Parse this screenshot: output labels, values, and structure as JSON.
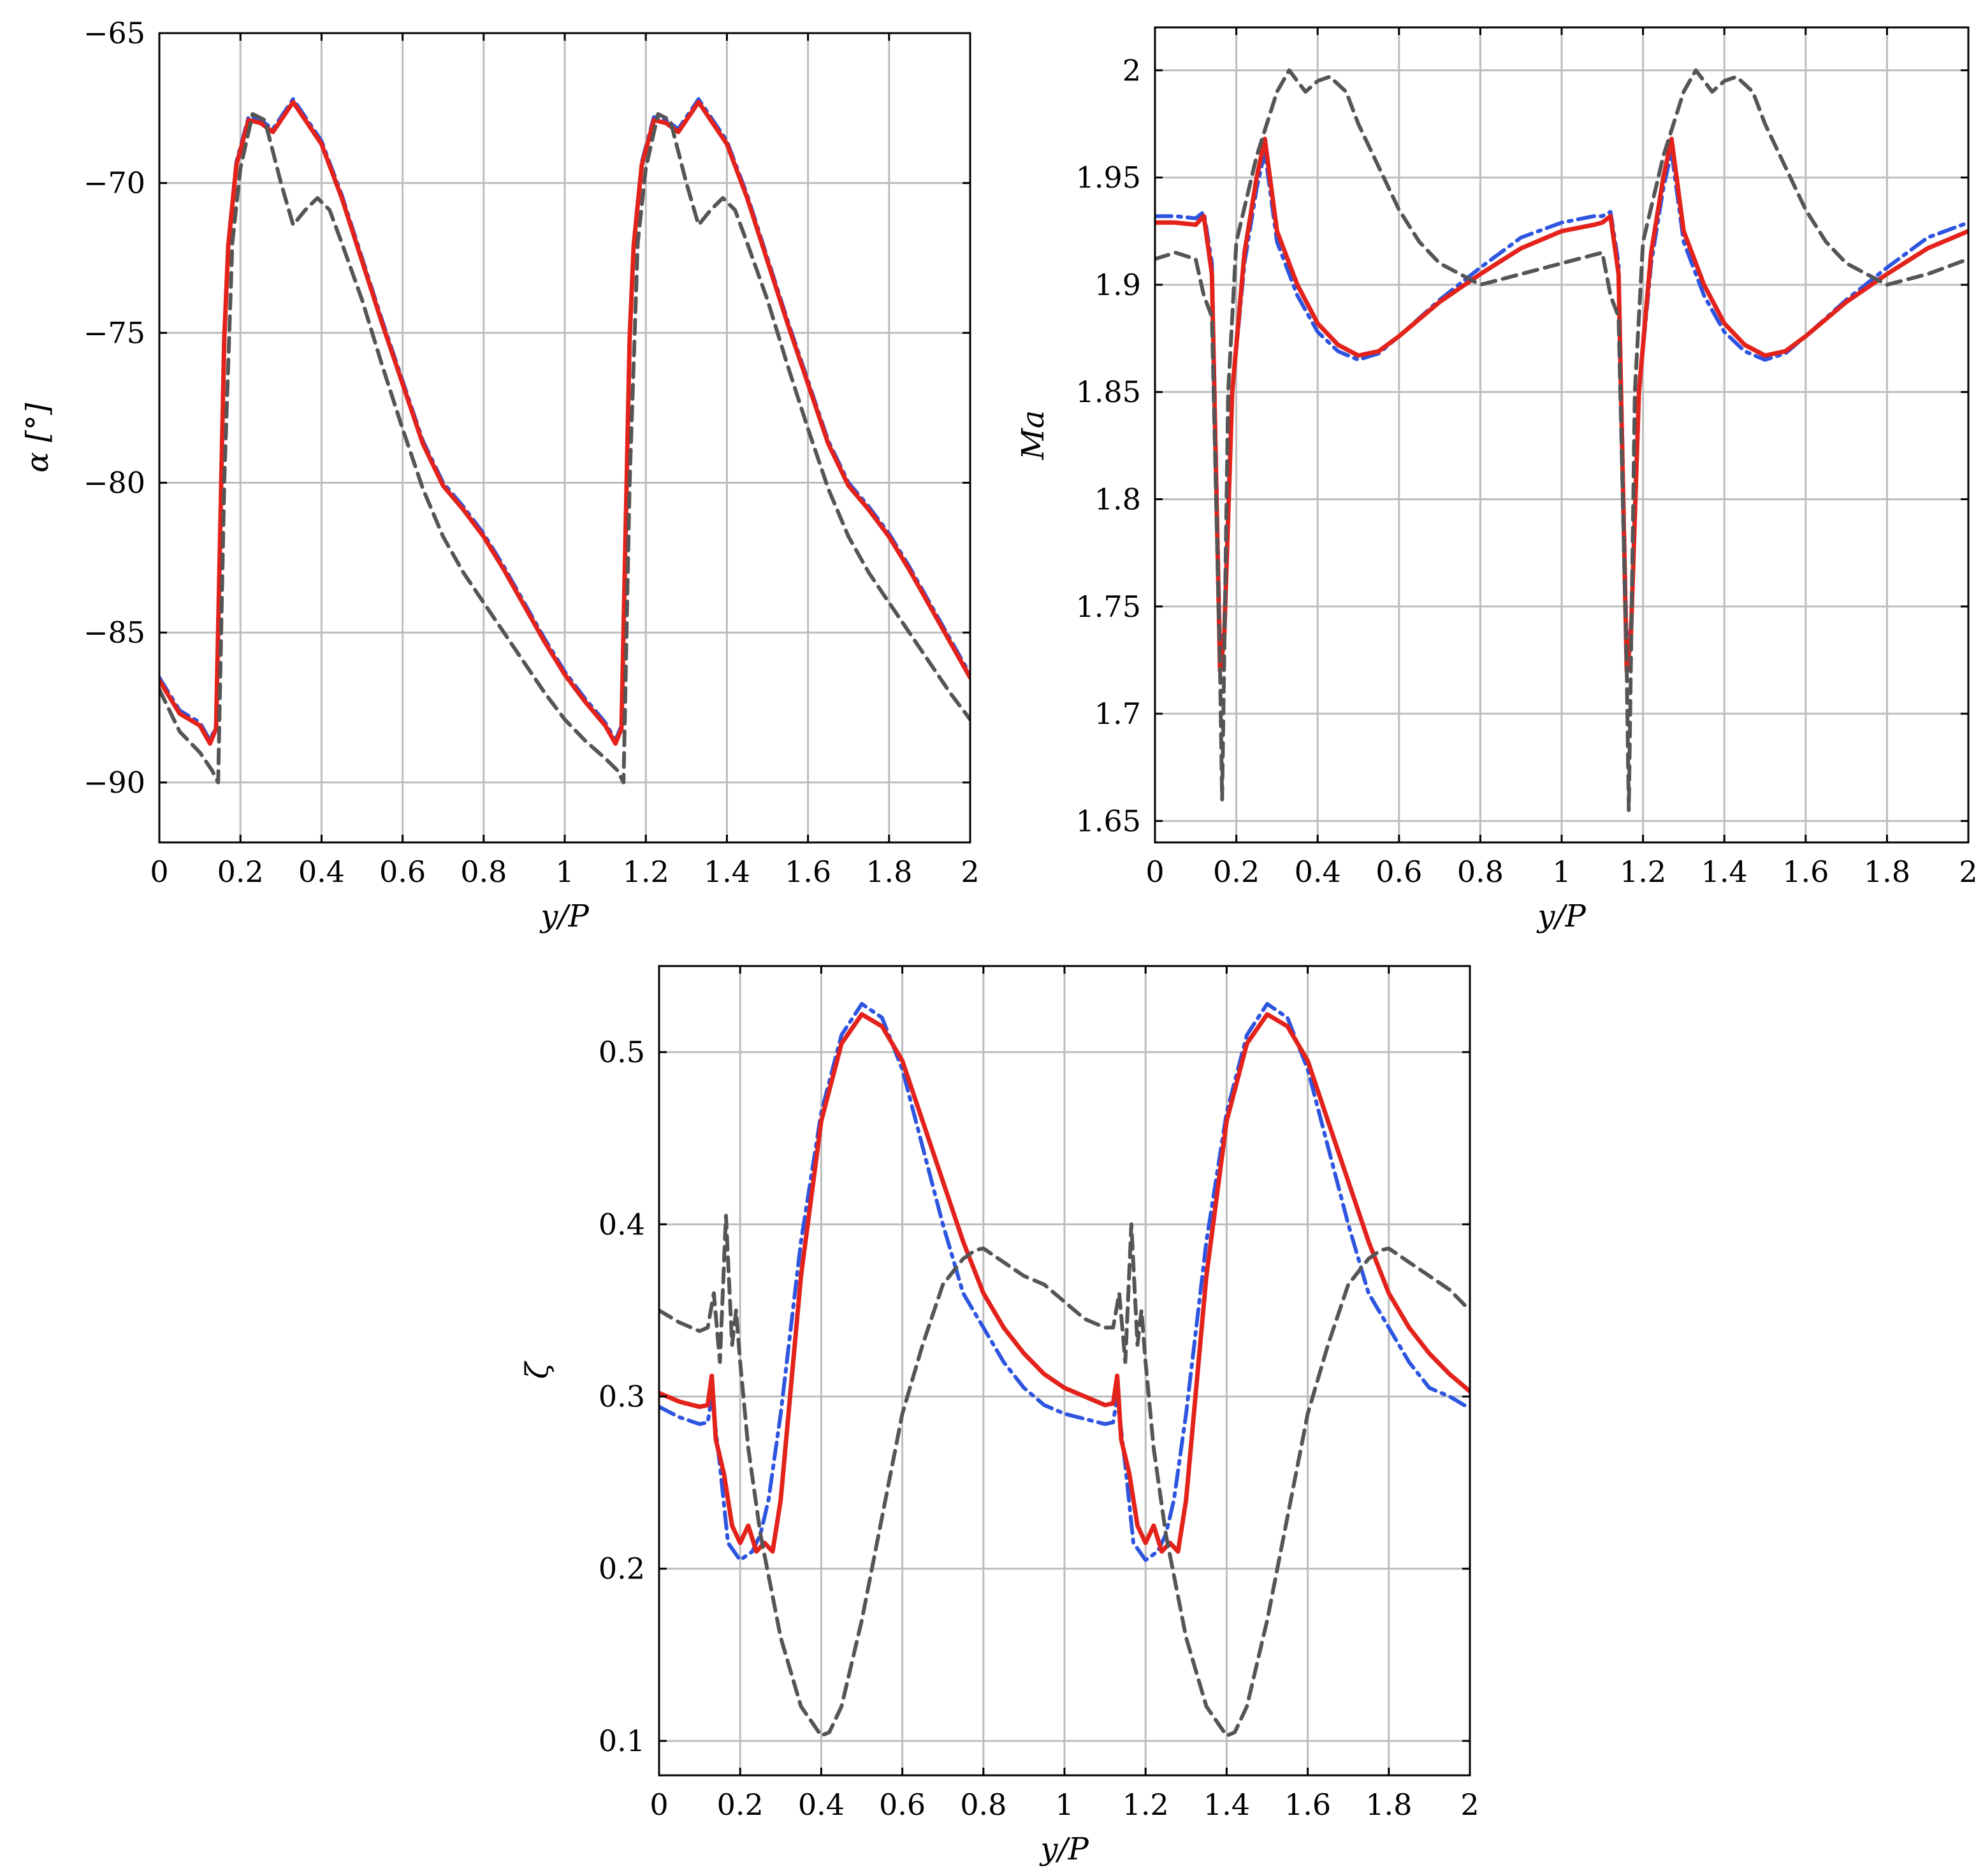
{
  "chart_data": [
    {
      "type": "line",
      "xlabel": "y/P",
      "ylabel": "α [°]",
      "xlim": [
        0,
        2
      ],
      "ylim": [
        -92,
        -65
      ],
      "xticks": [
        "0",
        "0.2",
        "0.4",
        "0.6",
        "0.8",
        "1",
        "1.2",
        "1.4",
        "1.6",
        "1.8",
        "2"
      ],
      "yticks": [
        "−90",
        "−85",
        "−80",
        "−75",
        "−70",
        "−65"
      ],
      "grid": true,
      "series": [
        {
          "color": "#2d55e0",
          "style": "dashdot",
          "x": [
            0,
            0.05,
            0.1,
            0.125,
            0.14,
            0.16,
            0.17,
            0.19,
            0.22,
            0.25,
            0.28,
            0.3,
            0.33,
            0.36,
            0.4,
            0.45,
            0.5,
            0.55,
            0.6,
            0.65,
            0.7,
            0.75,
            0.8,
            0.85,
            0.9,
            0.95,
            1.0,
            1.05,
            1.1,
            1.125,
            1.14,
            1.16,
            1.17,
            1.19,
            1.22,
            1.25,
            1.28,
            1.3,
            1.33,
            1.36,
            1.4,
            1.45,
            1.5,
            1.55,
            1.6,
            1.65,
            1.7,
            1.75,
            1.8,
            1.85,
            1.9,
            1.95,
            2.0
          ],
          "y": [
            -86.5,
            -87.6,
            -88.0,
            -88.6,
            -88.1,
            -75.0,
            -72.0,
            -69.3,
            -67.8,
            -67.9,
            -68.2,
            -67.8,
            -67.2,
            -67.8,
            -68.6,
            -70.4,
            -72.5,
            -74.6,
            -76.6,
            -78.6,
            -80.0,
            -80.8,
            -81.7,
            -82.8,
            -84.0,
            -85.2,
            -86.3,
            -87.2,
            -88.0,
            -88.6,
            -88.1,
            -75.0,
            -72.0,
            -69.3,
            -67.8,
            -67.9,
            -68.2,
            -67.8,
            -67.2,
            -67.8,
            -68.6,
            -70.4,
            -72.5,
            -74.6,
            -76.6,
            -78.6,
            -80.0,
            -80.8,
            -81.7,
            -82.8,
            -84.0,
            -85.2,
            -86.4
          ]
        },
        {
          "color": "#e3221b",
          "style": "solid",
          "x": [
            0,
            0.05,
            0.1,
            0.125,
            0.14,
            0.16,
            0.17,
            0.19,
            0.22,
            0.25,
            0.28,
            0.3,
            0.33,
            0.36,
            0.4,
            0.45,
            0.5,
            0.55,
            0.6,
            0.65,
            0.7,
            0.75,
            0.8,
            0.85,
            0.9,
            0.95,
            1.0,
            1.05,
            1.1,
            1.125,
            1.14,
            1.16,
            1.17,
            1.19,
            1.22,
            1.25,
            1.28,
            1.3,
            1.33,
            1.36,
            1.4,
            1.45,
            1.5,
            1.55,
            1.6,
            1.65,
            1.7,
            1.75,
            1.8,
            1.85,
            1.9,
            1.95,
            2.0
          ],
          "y": [
            -86.6,
            -87.7,
            -88.1,
            -88.7,
            -88.2,
            -75.2,
            -72.1,
            -69.4,
            -67.9,
            -68.0,
            -68.3,
            -67.9,
            -67.3,
            -67.9,
            -68.7,
            -70.5,
            -72.6,
            -74.7,
            -76.7,
            -78.7,
            -80.1,
            -80.9,
            -81.8,
            -82.9,
            -84.1,
            -85.3,
            -86.4,
            -87.3,
            -88.1,
            -88.7,
            -88.2,
            -75.2,
            -72.1,
            -69.4,
            -67.9,
            -68.0,
            -68.3,
            -67.9,
            -67.3,
            -67.9,
            -68.7,
            -70.5,
            -72.6,
            -74.7,
            -76.7,
            -78.7,
            -80.1,
            -80.9,
            -81.8,
            -82.9,
            -84.1,
            -85.3,
            -86.5
          ]
        },
        {
          "color": "#555555",
          "style": "dashed",
          "x": [
            0,
            0.05,
            0.1,
            0.13,
            0.145,
            0.16,
            0.18,
            0.2,
            0.23,
            0.26,
            0.3,
            0.33,
            0.36,
            0.39,
            0.42,
            0.45,
            0.5,
            0.55,
            0.6,
            0.65,
            0.7,
            0.75,
            0.8,
            0.85,
            0.9,
            0.95,
            1.0,
            1.05,
            1.1,
            1.13,
            1.145,
            1.16,
            1.18,
            1.2,
            1.23,
            1.26,
            1.3,
            1.33,
            1.36,
            1.39,
            1.42,
            1.45,
            1.5,
            1.55,
            1.6,
            1.65,
            1.7,
            1.75,
            1.8,
            1.85,
            1.9,
            1.95,
            2.0
          ],
          "y": [
            -86.9,
            -88.3,
            -89.0,
            -89.6,
            -90.0,
            -80.0,
            -72.0,
            -69.5,
            -67.7,
            -67.9,
            -70.0,
            -71.4,
            -70.9,
            -70.5,
            -70.9,
            -72.0,
            -73.9,
            -76.1,
            -78.2,
            -80.2,
            -81.8,
            -83.0,
            -84.0,
            -85.0,
            -86.0,
            -87.0,
            -87.9,
            -88.6,
            -89.2,
            -89.6,
            -90.0,
            -80.0,
            -72.0,
            -69.5,
            -67.7,
            -67.9,
            -70.0,
            -71.4,
            -70.9,
            -70.5,
            -70.9,
            -72.0,
            -73.9,
            -76.1,
            -78.2,
            -80.2,
            -81.8,
            -83.0,
            -84.0,
            -85.0,
            -86.0,
            -87.0,
            -87.9
          ]
        }
      ]
    },
    {
      "type": "line",
      "xlabel": "y/P",
      "ylabel": "Ma",
      "xlim": [
        0,
        2
      ],
      "ylim": [
        1.64,
        2.02
      ],
      "xticks": [
        "0",
        "0.2",
        "0.4",
        "0.6",
        "0.8",
        "1",
        "1.2",
        "1.4",
        "1.6",
        "1.8",
        "2"
      ],
      "yticks": [
        "1.65",
        "1.7",
        "1.75",
        "1.8",
        "1.85",
        "1.9",
        "1.95",
        "2"
      ],
      "grid": true,
      "series": [
        {
          "color": "#2d55e0",
          "style": "dashdot",
          "x": [
            0,
            0.05,
            0.1,
            0.12,
            0.14,
            0.16,
            0.17,
            0.19,
            0.22,
            0.25,
            0.27,
            0.3,
            0.35,
            0.4,
            0.45,
            0.5,
            0.55,
            0.6,
            0.7,
            0.8,
            0.9,
            1.0,
            1.08,
            1.1,
            1.12,
            1.14,
            1.16,
            1.17,
            1.19,
            1.22,
            1.25,
            1.27,
            1.3,
            1.35,
            1.4,
            1.45,
            1.5,
            1.55,
            1.6,
            1.7,
            1.8,
            1.9,
            2.0
          ],
          "y": [
            1.932,
            1.932,
            1.931,
            1.934,
            1.91,
            1.73,
            1.74,
            1.85,
            1.91,
            1.945,
            1.962,
            1.92,
            1.895,
            1.878,
            1.869,
            1.865,
            1.868,
            1.876,
            1.893,
            1.908,
            1.922,
            1.929,
            1.932,
            1.932,
            1.934,
            1.91,
            1.73,
            1.74,
            1.85,
            1.91,
            1.945,
            1.962,
            1.92,
            1.895,
            1.878,
            1.869,
            1.865,
            1.868,
            1.876,
            1.893,
            1.908,
            1.922,
            1.929
          ]
        },
        {
          "color": "#e3221b",
          "style": "solid",
          "x": [
            0,
            0.05,
            0.1,
            0.12,
            0.14,
            0.16,
            0.17,
            0.19,
            0.22,
            0.25,
            0.27,
            0.3,
            0.35,
            0.4,
            0.45,
            0.5,
            0.55,
            0.6,
            0.7,
            0.8,
            0.9,
            1.0,
            1.08,
            1.1,
            1.12,
            1.14,
            1.16,
            1.17,
            1.19,
            1.22,
            1.25,
            1.27,
            1.3,
            1.35,
            1.4,
            1.45,
            1.5,
            1.55,
            1.6,
            1.7,
            1.8,
            1.9,
            2.0
          ],
          "y": [
            1.929,
            1.929,
            1.928,
            1.932,
            1.905,
            1.72,
            1.735,
            1.85,
            1.915,
            1.95,
            1.968,
            1.925,
            1.9,
            1.882,
            1.872,
            1.867,
            1.869,
            1.876,
            1.892,
            1.905,
            1.917,
            1.925,
            1.928,
            1.929,
            1.932,
            1.905,
            1.72,
            1.735,
            1.85,
            1.915,
            1.95,
            1.968,
            1.925,
            1.9,
            1.882,
            1.872,
            1.867,
            1.869,
            1.876,
            1.892,
            1.905,
            1.917,
            1.925
          ]
        },
        {
          "color": "#555555",
          "style": "dashed",
          "x": [
            0,
            0.05,
            0.1,
            0.12,
            0.14,
            0.16,
            0.165,
            0.18,
            0.2,
            0.25,
            0.3,
            0.33,
            0.37,
            0.4,
            0.43,
            0.47,
            0.5,
            0.55,
            0.6,
            0.65,
            0.7,
            0.75,
            0.8,
            0.9,
            1.0,
            1.1,
            1.12,
            1.14,
            1.16,
            1.165,
            1.18,
            1.2,
            1.25,
            1.3,
            1.33,
            1.37,
            1.4,
            1.43,
            1.47,
            1.5,
            1.55,
            1.6,
            1.65,
            1.7,
            1.75,
            1.8,
            1.9,
            2.0
          ],
          "y": [
            1.912,
            1.915,
            1.912,
            1.895,
            1.885,
            1.72,
            1.66,
            1.85,
            1.92,
            1.96,
            1.99,
            2.0,
            1.99,
            1.995,
            1.997,
            1.99,
            1.975,
            1.955,
            1.935,
            1.92,
            1.91,
            1.905,
            1.9,
            1.905,
            1.91,
            1.915,
            1.895,
            1.885,
            1.72,
            1.655,
            1.85,
            1.92,
            1.96,
            1.99,
            2.0,
            1.99,
            1.995,
            1.997,
            1.99,
            1.975,
            1.955,
            1.935,
            1.92,
            1.91,
            1.905,
            1.9,
            1.905,
            1.912
          ]
        }
      ]
    },
    {
      "type": "line",
      "xlabel": "y/P",
      "ylabel": "ζ",
      "xlim": [
        0,
        2
      ],
      "ylim": [
        0.08,
        0.55
      ],
      "xticks": [
        "0",
        "0.2",
        "0.4",
        "0.6",
        "0.8",
        "1",
        "1.2",
        "1.4",
        "1.6",
        "1.8",
        "2"
      ],
      "yticks": [
        "0.1",
        "0.2",
        "0.3",
        "0.4",
        "0.5"
      ],
      "grid": true,
      "series": [
        {
          "color": "#2d55e0",
          "style": "dashdot",
          "x": [
            0,
            0.05,
            0.1,
            0.12,
            0.13,
            0.15,
            0.17,
            0.2,
            0.23,
            0.25,
            0.27,
            0.3,
            0.35,
            0.4,
            0.45,
            0.5,
            0.55,
            0.6,
            0.65,
            0.7,
            0.75,
            0.8,
            0.85,
            0.9,
            0.95,
            1.0,
            1.05,
            1.1,
            1.12,
            1.13,
            1.15,
            1.17,
            1.2,
            1.23,
            1.25,
            1.27,
            1.3,
            1.35,
            1.4,
            1.45,
            1.5,
            1.55,
            1.6,
            1.65,
            1.7,
            1.75,
            1.8,
            1.85,
            1.9,
            1.95,
            2.0
          ],
          "y": [
            0.294,
            0.288,
            0.284,
            0.285,
            0.3,
            0.26,
            0.215,
            0.205,
            0.21,
            0.22,
            0.24,
            0.29,
            0.39,
            0.465,
            0.51,
            0.528,
            0.52,
            0.49,
            0.445,
            0.4,
            0.36,
            0.34,
            0.32,
            0.305,
            0.295,
            0.29,
            0.287,
            0.284,
            0.285,
            0.3,
            0.26,
            0.215,
            0.205,
            0.21,
            0.22,
            0.24,
            0.29,
            0.39,
            0.465,
            0.51,
            0.528,
            0.52,
            0.49,
            0.445,
            0.4,
            0.36,
            0.34,
            0.32,
            0.305,
            0.3,
            0.293
          ]
        },
        {
          "color": "#e3221b",
          "style": "solid",
          "x": [
            0,
            0.05,
            0.1,
            0.12,
            0.13,
            0.14,
            0.16,
            0.18,
            0.2,
            0.22,
            0.24,
            0.26,
            0.28,
            0.3,
            0.35,
            0.4,
            0.45,
            0.5,
            0.55,
            0.6,
            0.65,
            0.7,
            0.75,
            0.8,
            0.85,
            0.9,
            0.95,
            1.0,
            1.05,
            1.1,
            1.12,
            1.13,
            1.14,
            1.16,
            1.18,
            1.2,
            1.22,
            1.24,
            1.26,
            1.28,
            1.3,
            1.35,
            1.4,
            1.45,
            1.5,
            1.55,
            1.6,
            1.65,
            1.7,
            1.75,
            1.8,
            1.85,
            1.9,
            1.95,
            2.0
          ],
          "y": [
            0.302,
            0.297,
            0.294,
            0.295,
            0.312,
            0.275,
            0.255,
            0.225,
            0.215,
            0.225,
            0.21,
            0.215,
            0.21,
            0.24,
            0.37,
            0.46,
            0.505,
            0.522,
            0.515,
            0.495,
            0.46,
            0.425,
            0.39,
            0.36,
            0.34,
            0.325,
            0.313,
            0.305,
            0.3,
            0.295,
            0.296,
            0.312,
            0.275,
            0.255,
            0.225,
            0.215,
            0.225,
            0.21,
            0.215,
            0.21,
            0.24,
            0.37,
            0.46,
            0.505,
            0.522,
            0.515,
            0.495,
            0.46,
            0.425,
            0.39,
            0.36,
            0.34,
            0.325,
            0.313,
            0.303
          ]
        },
        {
          "color": "#555555",
          "style": "dashed",
          "x": [
            0,
            0.05,
            0.1,
            0.12,
            0.135,
            0.15,
            0.165,
            0.18,
            0.19,
            0.2,
            0.22,
            0.25,
            0.3,
            0.35,
            0.4,
            0.42,
            0.45,
            0.5,
            0.55,
            0.6,
            0.65,
            0.7,
            0.75,
            0.78,
            0.8,
            0.85,
            0.9,
            0.95,
            1.0,
            1.05,
            1.1,
            1.12,
            1.135,
            1.15,
            1.165,
            1.18,
            1.19,
            1.2,
            1.22,
            1.25,
            1.3,
            1.35,
            1.4,
            1.42,
            1.45,
            1.5,
            1.55,
            1.6,
            1.65,
            1.7,
            1.75,
            1.78,
            1.8,
            1.85,
            1.9,
            1.95,
            2.0
          ],
          "y": [
            0.35,
            0.343,
            0.338,
            0.34,
            0.36,
            0.32,
            0.405,
            0.33,
            0.35,
            0.32,
            0.27,
            0.22,
            0.16,
            0.12,
            0.103,
            0.105,
            0.12,
            0.17,
            0.23,
            0.29,
            0.33,
            0.365,
            0.38,
            0.385,
            0.386,
            0.378,
            0.37,
            0.365,
            0.355,
            0.345,
            0.34,
            0.34,
            0.36,
            0.32,
            0.4,
            0.33,
            0.35,
            0.32,
            0.27,
            0.22,
            0.16,
            0.12,
            0.103,
            0.105,
            0.12,
            0.17,
            0.23,
            0.29,
            0.33,
            0.365,
            0.38,
            0.385,
            0.386,
            0.378,
            0.37,
            0.362,
            0.35
          ]
        }
      ]
    }
  ]
}
